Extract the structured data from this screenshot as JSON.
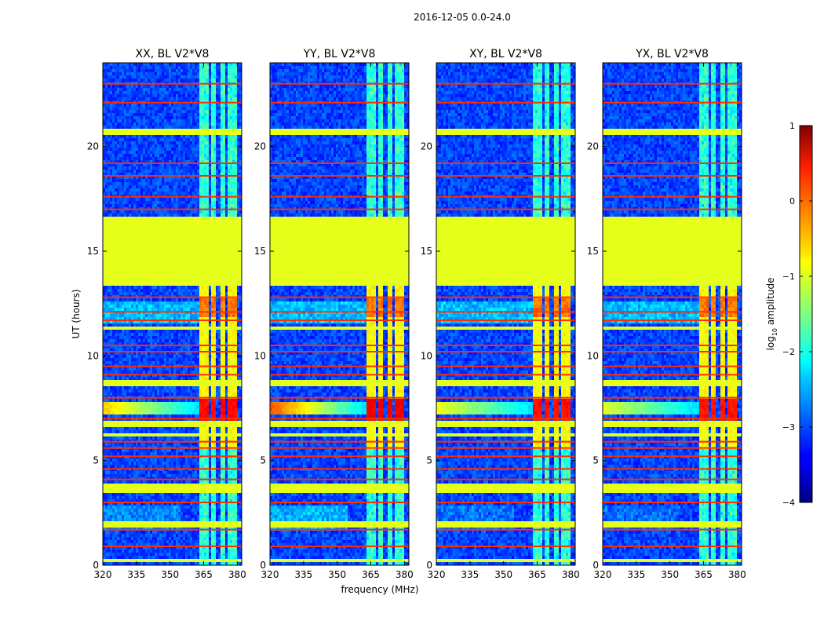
{
  "suptitle": "2016-12-05 0.0-24.0",
  "chart_data": {
    "type": "heatmap",
    "xlabel": "frequency (MHz)",
    "ylabel": "UT (hours)",
    "xlim": [
      320,
      382
    ],
    "ylim": [
      0,
      24
    ],
    "xticks": [
      320,
      335,
      350,
      365,
      380
    ],
    "yticks": [
      0,
      5,
      10,
      15,
      20
    ],
    "panels": [
      {
        "title": "XX, BL V2*V8",
        "band_strength": 1.0
      },
      {
        "title": "YY, BL V2*V8",
        "band_strength": 1.35
      },
      {
        "title": "XY, BL V2*V8",
        "band_strength": 0.8
      },
      {
        "title": "YX, BL V2*V8",
        "band_strength": 0.75
      }
    ],
    "flagged_value_log10": -1.0,
    "flagged_time_ranges_hours": [
      [
        13.3,
        16.7
      ],
      [
        20.6,
        20.9
      ],
      [
        11.2,
        11.4
      ],
      [
        8.6,
        8.9
      ],
      [
        6.6,
        6.9
      ],
      [
        6.2,
        6.35
      ],
      [
        3.5,
        3.85
      ],
      [
        2.0,
        2.15
      ],
      [
        1.8,
        1.9
      ],
      [
        0.2,
        0.3
      ]
    ],
    "hot_time_lines_hours": [
      23.0,
      22.1,
      19.2,
      18.6,
      17.6,
      17.0,
      12.8,
      12.1,
      11.7,
      10.5,
      10.2,
      9.5,
      9.1,
      8.0,
      7.0,
      5.9,
      5.6,
      5.2,
      4.6,
      4.1,
      3.0,
      1.7,
      0.9
    ],
    "rfi_active_band_mhz": [
      363.5,
      379.5
    ],
    "rfi_channel_gaps_mhz": [
      367.5,
      371.5,
      375.5
    ],
    "colorbar": {
      "label": "log",
      "label_sub": "10",
      "label_suffix": " amplitude",
      "range": [
        -4,
        1
      ],
      "ticks": [
        1,
        0,
        -1,
        -2,
        -3,
        -4
      ],
      "tick_labels": [
        "1",
        "0",
        "−1",
        "−2",
        "−3",
        "−4"
      ],
      "colormap": "jet"
    }
  }
}
